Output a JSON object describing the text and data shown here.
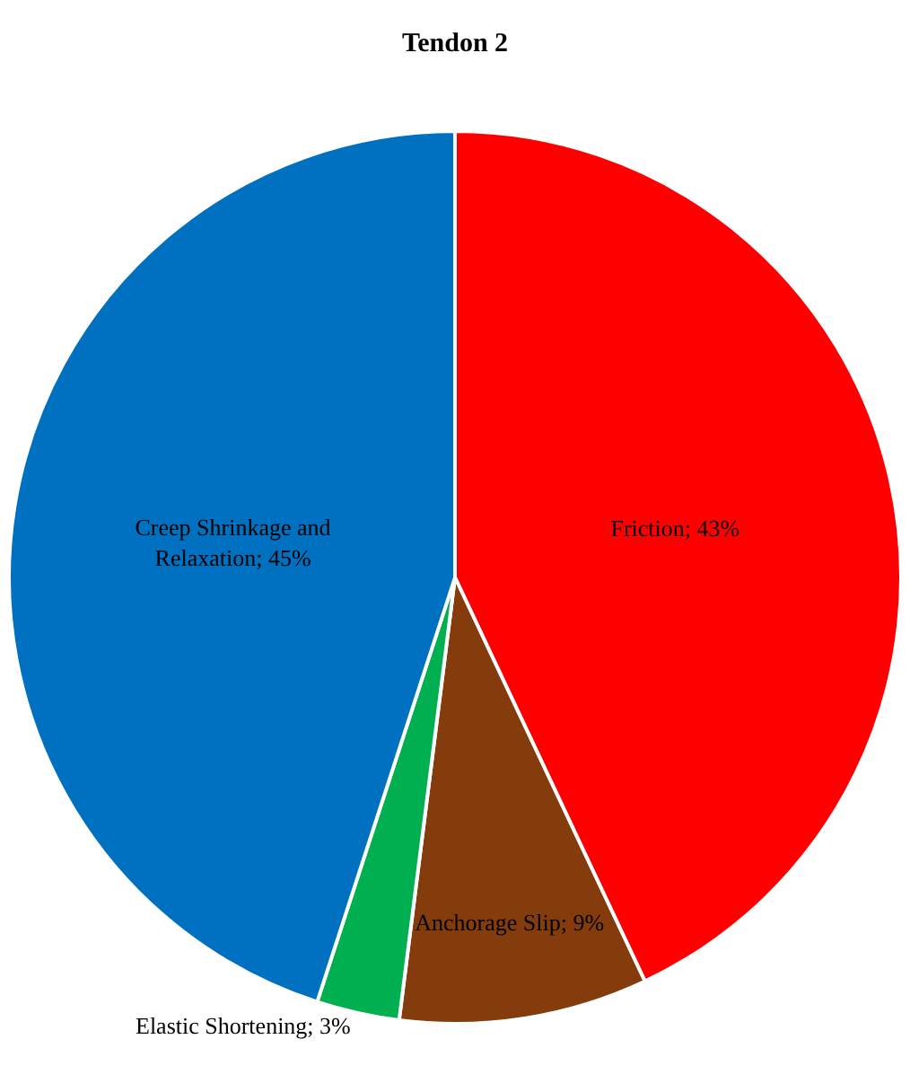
{
  "chart_data": {
    "type": "pie",
    "title": "Tendon 2",
    "categories": [
      "Friction",
      "Anchorage Slip",
      "Elastic Shortening",
      "Creep Shrinkage and Relaxation"
    ],
    "values": [
      43,
      9,
      3,
      45
    ],
    "colors": [
      "#ff0000",
      "#843c0c",
      "#00b050",
      "#0070c0"
    ],
    "value_labels": [
      "43%",
      "9%",
      "3%",
      "45%"
    ],
    "legend": false
  }
}
